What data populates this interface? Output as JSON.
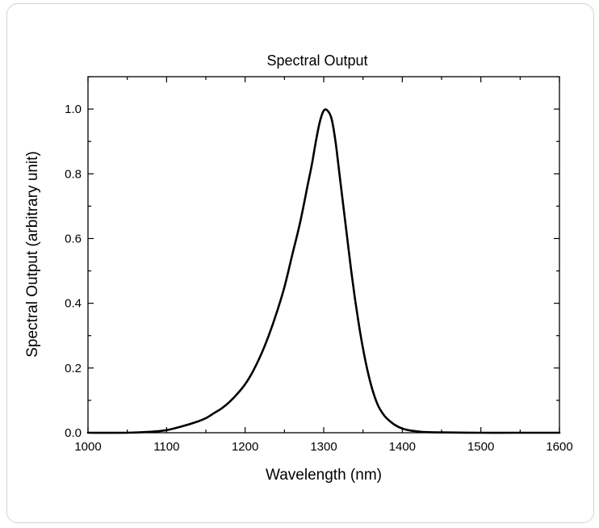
{
  "chart_data": {
    "type": "line",
    "title": "Spectral Output",
    "xlabel": "Wavelength (nm)",
    "ylabel": "Spectral Output (arbitrary unit)",
    "xlim": [
      1000,
      1600
    ],
    "ylim": [
      0,
      1.1
    ],
    "xticks": [
      "1000",
      "1100",
      "1200",
      "1300",
      "1400",
      "1500",
      "1600"
    ],
    "yticks": [
      "0.0",
      "0.2",
      "0.4",
      "0.6",
      "0.8",
      "1.0"
    ],
    "grid": false,
    "legend": "none",
    "series": [
      {
        "color": "#000000",
        "x": [
          1000,
          1050,
          1080,
          1100,
          1120,
          1140,
          1150,
          1160,
          1170,
          1180,
          1190,
          1200,
          1210,
          1220,
          1230,
          1240,
          1250,
          1260,
          1270,
          1280,
          1285,
          1290,
          1295,
          1300,
          1305,
          1310,
          1315,
          1320,
          1325,
          1330,
          1335,
          1340,
          1345,
          1350,
          1355,
          1360,
          1365,
          1370,
          1375,
          1380,
          1390,
          1400,
          1410,
          1420,
          1430,
          1450,
          1500,
          1550,
          1600
        ],
        "y": [
          0.0,
          0.0,
          0.003,
          0.008,
          0.02,
          0.035,
          0.045,
          0.06,
          0.075,
          0.095,
          0.12,
          0.15,
          0.19,
          0.24,
          0.3,
          0.37,
          0.45,
          0.55,
          0.65,
          0.77,
          0.83,
          0.9,
          0.96,
          0.995,
          0.995,
          0.97,
          0.9,
          0.8,
          0.7,
          0.6,
          0.5,
          0.41,
          0.33,
          0.26,
          0.2,
          0.15,
          0.11,
          0.08,
          0.06,
          0.045,
          0.025,
          0.013,
          0.007,
          0.004,
          0.002,
          0.001,
          0.0,
          0.0,
          0.0
        ]
      }
    ]
  }
}
